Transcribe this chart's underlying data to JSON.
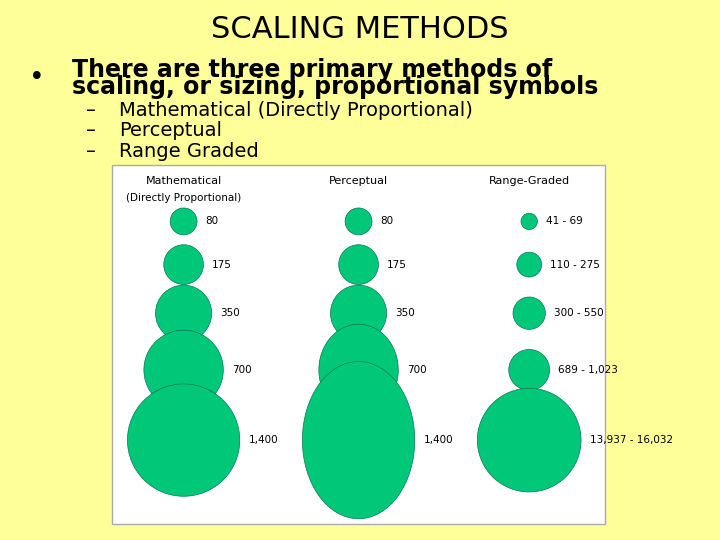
{
  "bg_color": "#FFFF99",
  "title": "SCALING METHODS",
  "bullet_text_line1": "There are three primary methods of",
  "bullet_text_line2": "scaling, or sizing, proportional symbols",
  "sub_bullets": [
    "Mathematical (Directly Proportional)",
    "Perceptual",
    "Range Graded"
  ],
  "box_bg": "#FFFFFF",
  "box_edge": "#AAAAAA",
  "circle_color": "#00C878",
  "circle_edge": "#007755",
  "col_headers_line1": [
    "Mathematical",
    "Perceptual",
    "Range-Graded"
  ],
  "col_headers_line2": [
    "(Directly Proportional)",
    "",
    ""
  ],
  "math_labels": [
    "80",
    "175",
    "350",
    "700",
    "1,400"
  ],
  "perceptual_labels": [
    "80",
    "175",
    "350",
    "700",
    "1,400"
  ],
  "range_labels": [
    "41 - 69",
    "110 - 275",
    "300 - 550",
    "689 - 1,023",
    "13,937 - 16,032"
  ],
  "title_fontsize": 22,
  "bullet_fontsize": 17,
  "sub_fontsize": 14,
  "diagram_fontsize": 7.5,
  "header_fontsize": 8.0
}
